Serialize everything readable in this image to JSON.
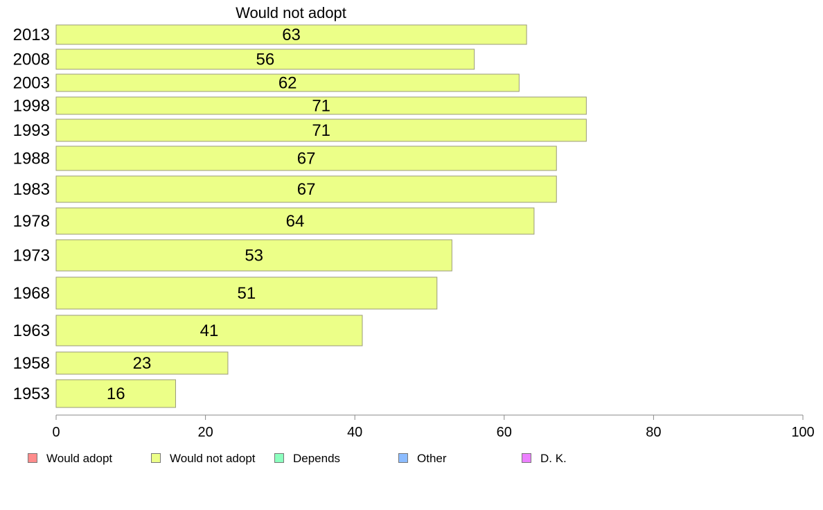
{
  "chart_data": {
    "type": "bar",
    "orientation": "horizontal",
    "title": "Would not adopt",
    "categories": [
      "2013",
      "2008",
      "2003",
      "1998",
      "1993",
      "1988",
      "1983",
      "1978",
      "1973",
      "1968",
      "1963",
      "1958",
      "1953"
    ],
    "series": [
      {
        "name": "Would not adopt",
        "color": "#ecff88",
        "values": [
          63,
          56,
          62,
          71,
          71,
          67,
          67,
          64,
          53,
          51,
          41,
          23,
          16
        ]
      }
    ],
    "xlim": [
      0,
      100
    ],
    "xticks": [
      0,
      20,
      40,
      60,
      80,
      100
    ],
    "grid": false,
    "legend": {
      "placement": "bottom",
      "entries": [
        {
          "label": "Would adopt",
          "color": "#ff8c8c"
        },
        {
          "label": "Would not adopt",
          "color": "#ecff88"
        },
        {
          "label": "Depends",
          "color": "#8cffbe"
        },
        {
          "label": "Other",
          "color": "#8cbcff"
        },
        {
          "label": "D. K.",
          "color": "#ec80ff"
        }
      ]
    }
  }
}
